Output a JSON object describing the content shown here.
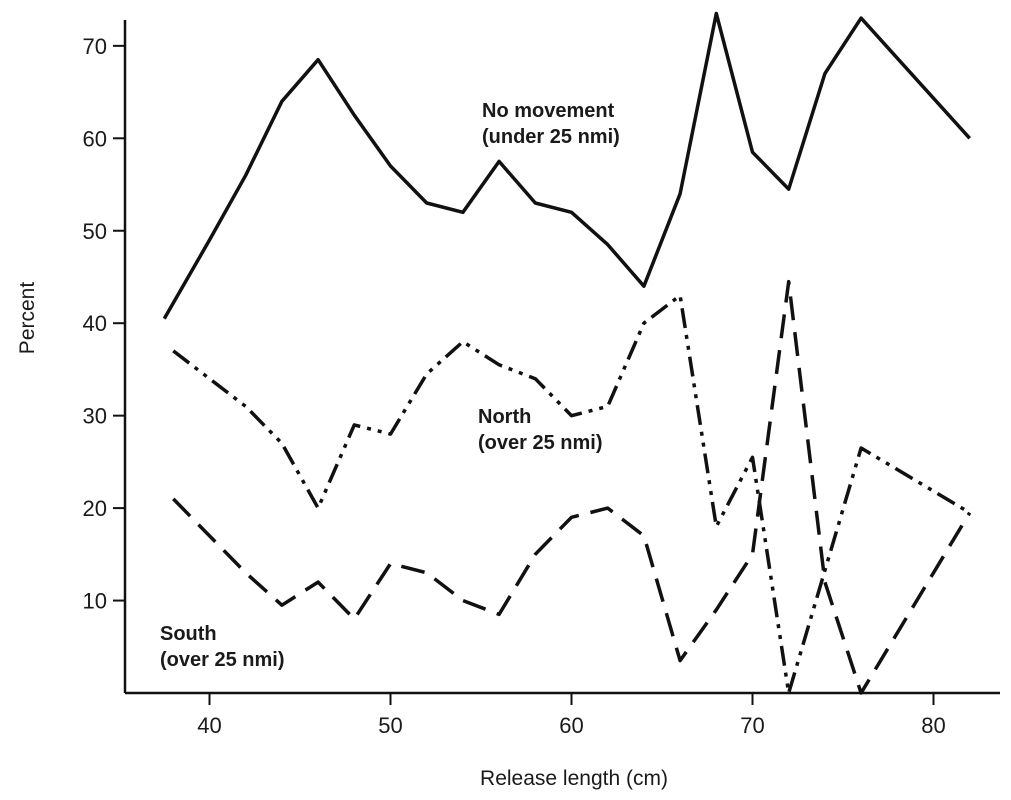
{
  "chart_data": {
    "type": "line",
    "title": "",
    "xlabel": "Release length (cm)",
    "ylabel": "Percent",
    "xlim": [
      35,
      85
    ],
    "ylim": [
      0,
      75
    ],
    "x_ticks": [
      40,
      50,
      60,
      70,
      80
    ],
    "y_ticks": [
      10,
      20,
      30,
      40,
      50,
      60,
      70
    ],
    "grid": false,
    "legend": "none",
    "series": [
      {
        "name": "No movement\n(under 25 nmi)",
        "dash": "solid",
        "color": "#111111",
        "x": [
          37.5,
          40,
          42,
          44,
          46,
          48,
          50,
          52,
          54,
          56,
          58,
          60,
          62,
          64,
          66,
          68,
          70,
          72,
          74,
          76,
          82
        ],
        "y": [
          40.5,
          49,
          56,
          64,
          68.5,
          62.5,
          57,
          53,
          52,
          57.5,
          53,
          52,
          48.5,
          44,
          54,
          73.5,
          58.5,
          54.5,
          67,
          73,
          60
        ]
      },
      {
        "name": "North\n(over 25 nmi)",
        "dash": "dash-dot-dot",
        "color": "#111111",
        "x": [
          38,
          42,
          44,
          46,
          48,
          50,
          52,
          54,
          56,
          58,
          60,
          62,
          64,
          66,
          68,
          70,
          72,
          76,
          82
        ],
        "y": [
          37,
          31,
          27,
          20,
          29,
          28,
          34.5,
          38,
          35.5,
          34,
          30,
          31,
          40,
          43,
          18,
          25.5,
          0,
          26.5,
          19.5
        ]
      },
      {
        "name": "South\n(over 25 nmi)",
        "dash": "dashed",
        "color": "#111111",
        "x": [
          38,
          42,
          44,
          46,
          48,
          50,
          52,
          54,
          56,
          58,
          60,
          62,
          64,
          66,
          68,
          70,
          72,
          74,
          76,
          82
        ],
        "y": [
          21,
          13,
          9.5,
          12,
          8,
          14,
          13,
          10,
          8.5,
          15,
          19,
          20,
          17,
          3.5,
          9,
          15,
          44.5,
          12,
          0,
          19.5
        ]
      }
    ]
  }
}
